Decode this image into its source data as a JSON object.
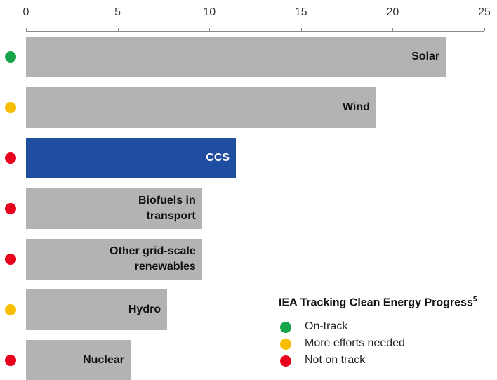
{
  "chart_data": {
    "type": "barh",
    "categories": [
      "Solar",
      "Wind",
      "CCS",
      "Biofuels in transport",
      "Other grid-scale renewables",
      "Hydro",
      "Nuclear"
    ],
    "values": [
      22.9,
      19.1,
      11.45,
      9.6,
      9.6,
      7.7,
      5.7
    ],
    "colors": [
      "#b3b3b3",
      "#b3b3b3",
      "#1f4ea0",
      "#b3b3b3",
      "#b3b3b3",
      "#b3b3b3",
      "#b3b3b3"
    ],
    "status": [
      "On-track",
      "More efforts needed",
      "Not on track",
      "Not on track",
      "Not on track",
      "More efforts needed",
      "Not on track"
    ],
    "xlim": [
      0,
      25
    ],
    "xticks": [
      0,
      5,
      10,
      15,
      20,
      25
    ],
    "legend": {
      "title": "IEA Tracking Clean Energy Progress",
      "title_footnote": "5",
      "items": [
        {
          "name": "On-track",
          "color": "#17a34a"
        },
        {
          "name": "More efforts needed",
          "color": "#f7be00"
        },
        {
          "name": "Not on track",
          "color": "#e8001c"
        }
      ]
    }
  }
}
